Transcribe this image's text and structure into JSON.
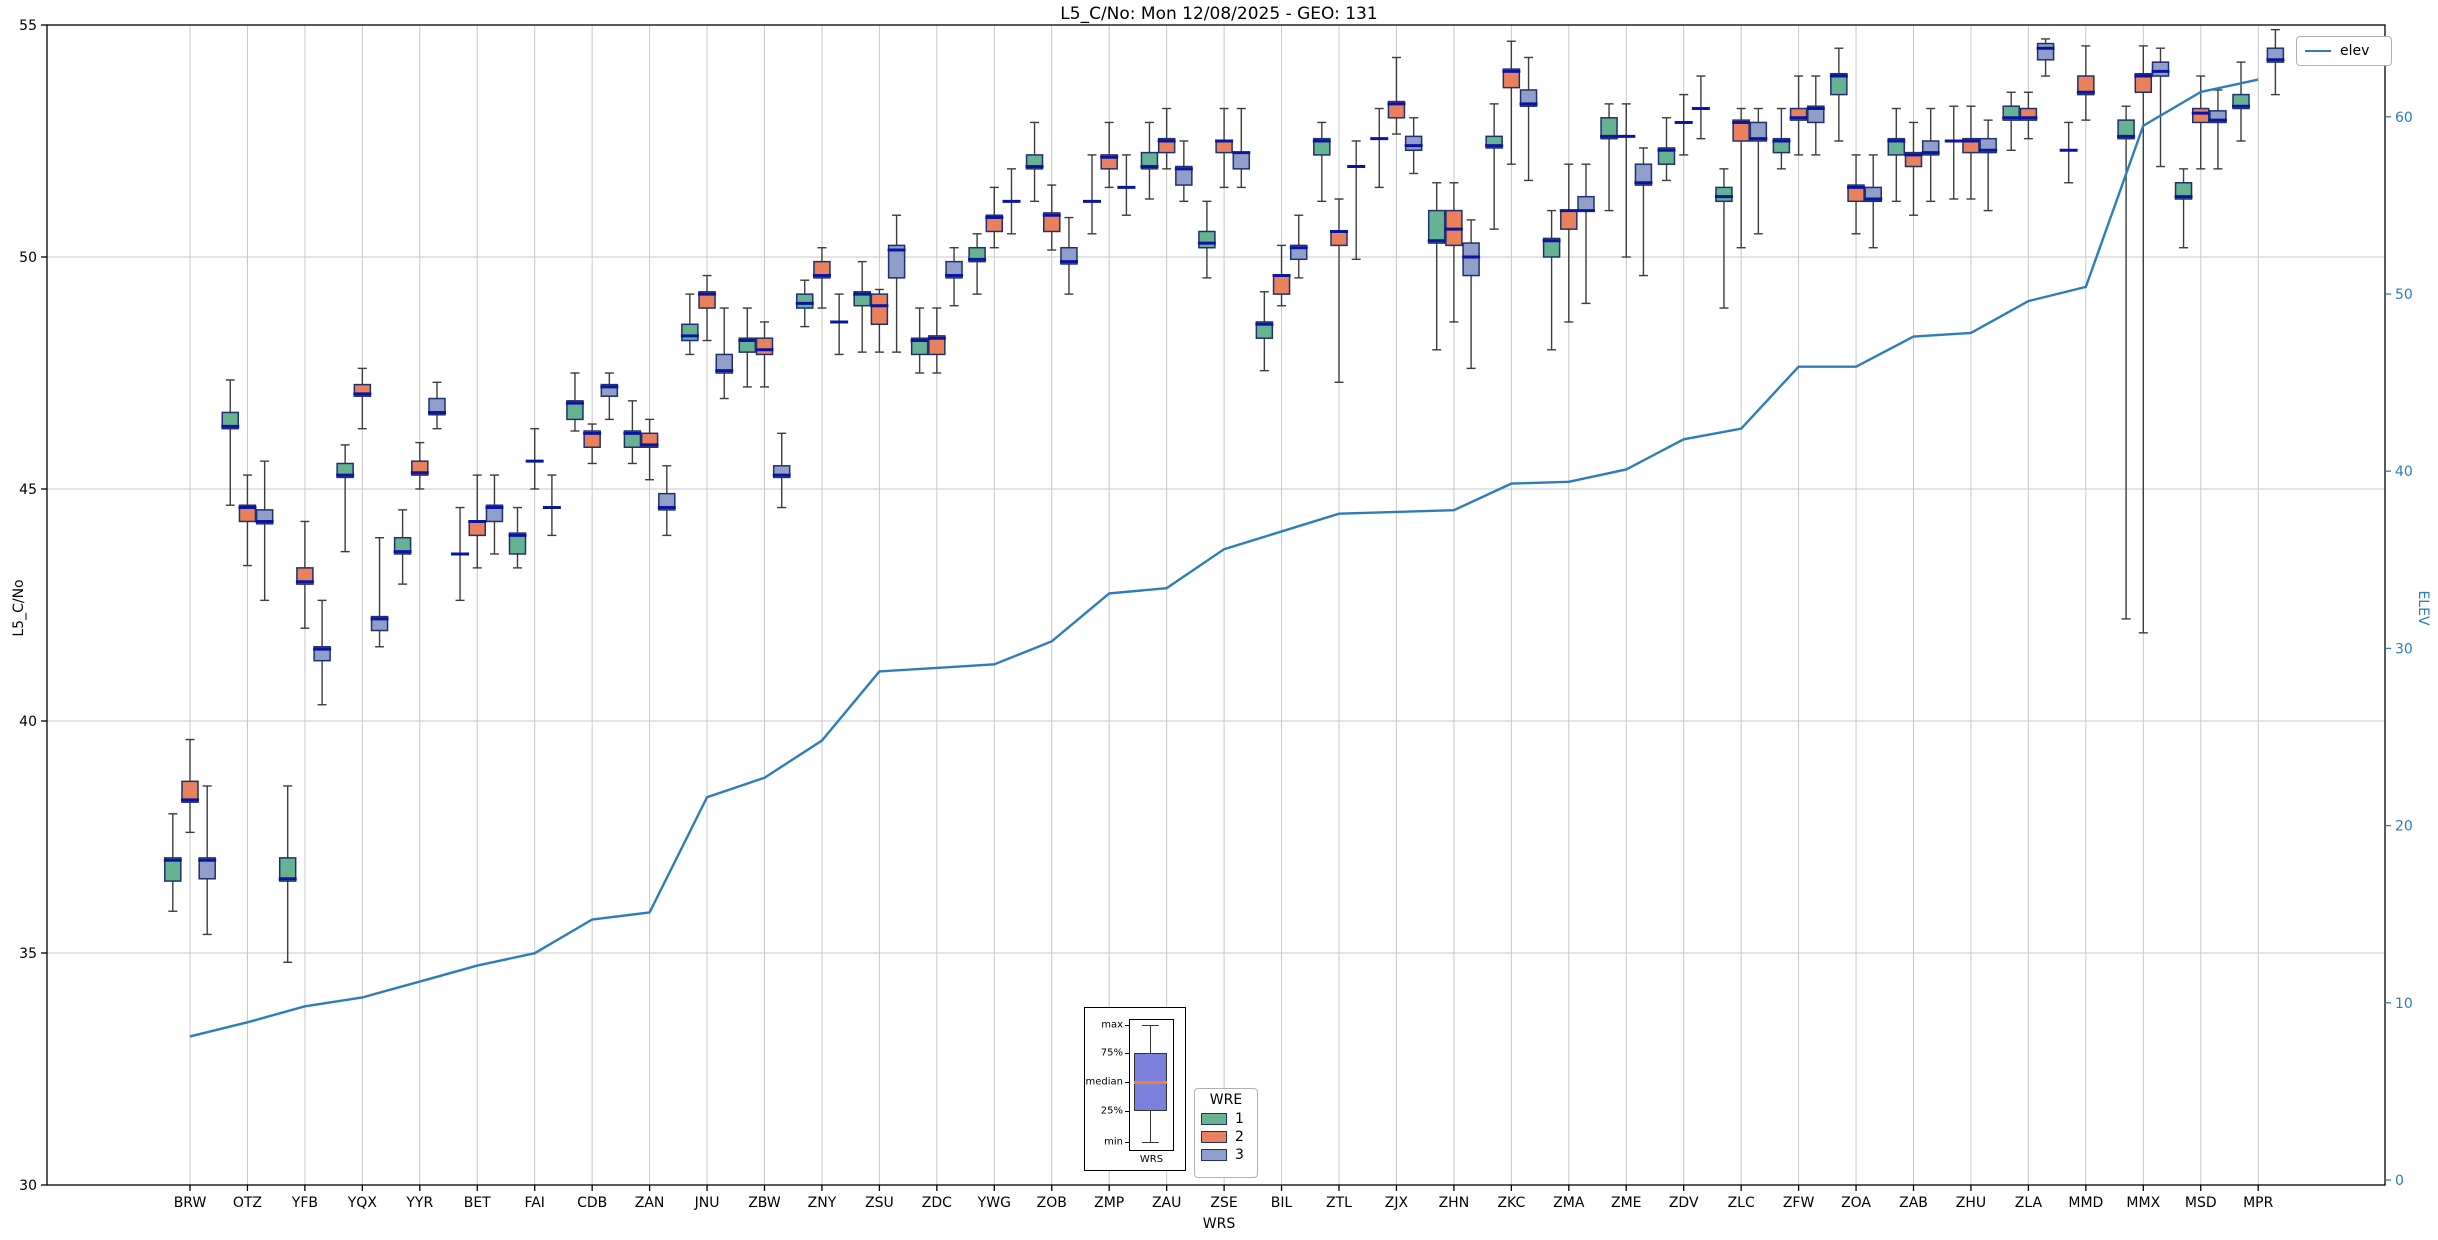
{
  "title": "L5_C/No: Mon 12/08/2025 - GEO: 131",
  "axes": {
    "ylabel_left": "L5_C/No",
    "ylabel_right": "ELEV",
    "xlabel": "WRS",
    "yticks_left": [
      30,
      35,
      40,
      45,
      50,
      55
    ],
    "yticks_right": [
      0,
      10,
      20,
      30,
      40,
      50,
      60
    ],
    "ylim_left": [
      30,
      55
    ],
    "right_axis_color": "#2d7dbb",
    "grid_color": "#c8c8c8"
  },
  "legend_elev": {
    "label": "elev"
  },
  "legend_wre": {
    "title": "WRE"
  },
  "inset": {
    "labels": [
      "max",
      "75%",
      "median",
      "25%",
      "min"
    ],
    "xlabel": "WRS",
    "box_color": "#7c80dd",
    "median_color": "#e8823c"
  },
  "chart_data": {
    "type": "boxplot+line",
    "title": "L5_C/No: Mon 12/08/2025 - GEO: 131",
    "xlabel": "WRS",
    "ylabel": "L5_C/No",
    "ylabel2": "ELEV",
    "ylim": [
      30,
      55
    ],
    "ylim2_ticks": [
      0,
      10,
      20,
      30,
      40,
      50,
      60
    ],
    "grid": true,
    "legend_position": "upper right",
    "categories": [
      "BRW",
      "OTZ",
      "YFB",
      "YQX",
      "YYR",
      "BET",
      "FAI",
      "CDB",
      "ZAN",
      "JNU",
      "ZBW",
      "ZNY",
      "ZSU",
      "ZDC",
      "YWG",
      "ZOB",
      "ZMP",
      "ZAU",
      "ZSE",
      "BIL",
      "ZTL",
      "ZJX",
      "ZHN",
      "ZKC",
      "ZMA",
      "ZME",
      "ZDV",
      "ZLC",
      "ZFW",
      "ZOA",
      "ZAB",
      "ZHU",
      "ZLA",
      "MMD",
      "MMX",
      "MSD",
      "MPR"
    ],
    "box_stats_order": [
      "median",
      "q1",
      "q3",
      "whisker_low",
      "whisker_high"
    ],
    "series": [
      {
        "name": "1",
        "color": "#66b394",
        "boxes": [
          [
            37.0,
            36.55,
            37.05,
            35.9,
            38.0
          ],
          [
            46.35,
            46.3,
            46.65,
            44.65,
            47.35
          ],
          [
            36.6,
            36.55,
            37.05,
            34.8,
            38.6
          ],
          [
            45.3,
            45.25,
            45.55,
            43.65,
            45.95
          ],
          [
            43.65,
            43.6,
            43.95,
            42.95,
            44.55
          ],
          [
            43.6,
            43.6,
            43.6,
            42.6,
            44.6
          ],
          [
            44.0,
            43.6,
            44.05,
            43.3,
            44.6
          ],
          [
            46.85,
            46.5,
            46.9,
            46.25,
            47.5
          ],
          [
            46.2,
            45.9,
            46.25,
            45.55,
            46.9
          ],
          [
            48.3,
            48.2,
            48.55,
            47.9,
            49.2
          ],
          [
            48.2,
            47.95,
            48.25,
            47.2,
            48.9
          ],
          [
            49.0,
            48.9,
            49.2,
            48.5,
            49.5
          ],
          [
            49.2,
            48.95,
            49.25,
            47.95,
            49.9
          ],
          [
            48.2,
            47.9,
            48.25,
            47.5,
            48.9
          ],
          [
            49.95,
            49.9,
            50.2,
            49.2,
            50.5
          ],
          [
            51.95,
            51.9,
            52.2,
            51.2,
            52.9
          ],
          [
            51.2,
            51.2,
            51.2,
            50.5,
            52.2
          ],
          [
            51.95,
            51.9,
            52.25,
            51.25,
            52.9
          ],
          [
            50.3,
            50.2,
            50.55,
            49.55,
            51.2
          ],
          [
            48.55,
            48.25,
            48.6,
            47.55,
            49.25
          ],
          [
            52.5,
            52.2,
            52.55,
            51.2,
            52.9
          ],
          [
            52.55,
            52.55,
            52.55,
            51.5,
            53.2
          ],
          [
            50.35,
            50.3,
            51.0,
            48.0,
            51.6
          ],
          [
            52.4,
            52.35,
            52.6,
            50.6,
            53.3
          ],
          [
            50.35,
            50.0,
            50.4,
            48.0,
            51.0
          ],
          [
            52.6,
            52.55,
            53.0,
            51.0,
            53.3
          ],
          [
            52.3,
            52.0,
            52.35,
            51.65,
            53.0
          ],
          [
            51.3,
            51.2,
            51.5,
            48.9,
            51.9
          ],
          [
            52.5,
            52.25,
            52.55,
            51.9,
            53.2
          ],
          [
            53.9,
            53.5,
            53.95,
            52.5,
            54.5
          ],
          [
            52.5,
            52.2,
            52.55,
            51.2,
            53.2
          ],
          [
            52.5,
            52.5,
            52.5,
            51.25,
            53.25
          ],
          [
            53.0,
            52.95,
            53.25,
            52.3,
            53.55
          ],
          [
            52.3,
            52.3,
            52.3,
            51.6,
            52.9
          ],
          [
            52.6,
            52.55,
            52.95,
            42.2,
            53.25
          ],
          [
            51.3,
            51.25,
            51.6,
            50.2,
            51.9
          ],
          [
            53.25,
            53.2,
            53.5,
            52.5,
            54.2
          ]
        ]
      },
      {
        "name": "2",
        "color": "#e8815c",
        "boxes": [
          [
            38.3,
            38.25,
            38.7,
            37.6,
            39.6
          ],
          [
            44.6,
            44.3,
            44.65,
            43.35,
            45.3
          ],
          [
            43.0,
            42.95,
            43.3,
            42.0,
            44.3
          ],
          [
            47.05,
            47.0,
            47.25,
            46.3,
            47.6
          ],
          [
            45.35,
            45.3,
            45.6,
            45.0,
            46.0
          ],
          [
            44.3,
            44.0,
            44.3,
            43.3,
            45.3
          ],
          [
            45.6,
            45.6,
            45.6,
            45.0,
            46.3
          ],
          [
            46.2,
            45.9,
            46.25,
            45.55,
            46.4
          ],
          [
            45.95,
            45.9,
            46.2,
            45.2,
            46.5
          ],
          [
            49.2,
            48.9,
            49.25,
            48.2,
            49.6
          ],
          [
            48.0,
            47.9,
            48.25,
            47.2,
            48.6
          ],
          [
            49.6,
            49.55,
            49.9,
            48.9,
            50.2
          ],
          [
            48.95,
            48.55,
            49.2,
            47.95,
            49.3
          ],
          [
            48.25,
            47.9,
            48.3,
            47.5,
            48.9
          ],
          [
            50.85,
            50.55,
            50.9,
            50.2,
            51.5
          ],
          [
            50.9,
            50.55,
            50.95,
            50.15,
            51.55
          ],
          [
            52.15,
            51.9,
            52.2,
            51.5,
            52.9
          ],
          [
            52.5,
            52.25,
            52.55,
            51.9,
            53.2
          ],
          [
            52.5,
            52.25,
            52.5,
            51.5,
            53.2
          ],
          [
            49.6,
            49.2,
            49.6,
            48.95,
            50.25
          ],
          [
            50.55,
            50.25,
            50.55,
            47.3,
            51.25
          ],
          [
            53.3,
            53.0,
            53.35,
            52.65,
            54.3
          ],
          [
            50.6,
            50.25,
            51.0,
            48.6,
            51.6
          ],
          [
            54.0,
            53.65,
            54.05,
            52.0,
            54.65
          ],
          [
            51.0,
            50.6,
            51.0,
            48.6,
            52.0
          ],
          [
            52.6,
            52.6,
            52.6,
            50.0,
            53.3
          ],
          [
            52.9,
            52.9,
            52.9,
            52.2,
            53.5
          ],
          [
            52.9,
            52.5,
            52.95,
            50.2,
            53.2
          ],
          [
            53.0,
            52.95,
            53.2,
            52.2,
            53.9
          ],
          [
            51.5,
            51.2,
            51.55,
            50.5,
            52.2
          ],
          [
            52.2,
            51.95,
            52.25,
            50.9,
            52.9
          ],
          [
            52.5,
            52.25,
            52.55,
            51.25,
            53.25
          ],
          [
            53.0,
            52.95,
            53.2,
            52.55,
            53.55
          ],
          [
            53.55,
            53.5,
            53.9,
            52.95,
            54.55
          ],
          [
            53.9,
            53.55,
            53.95,
            41.9,
            54.55
          ],
          [
            53.1,
            52.9,
            53.2,
            51.9,
            53.9
          ],
          null
        ]
      },
      {
        "name": "3",
        "color": "#8f9fca",
        "boxes": [
          [
            37.0,
            36.6,
            37.05,
            35.4,
            38.6
          ],
          [
            44.3,
            44.25,
            44.55,
            42.6,
            45.6
          ],
          [
            41.55,
            41.3,
            41.6,
            40.35,
            42.6
          ],
          [
            42.2,
            41.95,
            42.25,
            41.6,
            43.95
          ],
          [
            46.65,
            46.6,
            46.95,
            46.3,
            47.3
          ],
          [
            44.6,
            44.3,
            44.65,
            43.6,
            45.3
          ],
          [
            44.6,
            44.6,
            44.6,
            44.0,
            45.3
          ],
          [
            47.2,
            47.0,
            47.25,
            46.5,
            47.5
          ],
          [
            44.6,
            44.55,
            44.9,
            44.0,
            45.5
          ],
          [
            47.55,
            47.5,
            47.9,
            46.95,
            48.9
          ],
          [
            45.3,
            45.25,
            45.5,
            44.6,
            46.2
          ],
          [
            48.6,
            48.6,
            48.6,
            47.9,
            49.2
          ],
          [
            50.15,
            49.55,
            50.25,
            47.95,
            50.9
          ],
          [
            49.6,
            49.55,
            49.9,
            48.95,
            50.2
          ],
          [
            51.2,
            51.2,
            51.2,
            50.5,
            51.9
          ],
          [
            49.9,
            49.85,
            50.2,
            49.2,
            50.85
          ],
          [
            51.5,
            51.5,
            51.5,
            50.9,
            52.2
          ],
          [
            51.9,
            51.55,
            51.95,
            51.2,
            52.5
          ],
          [
            52.25,
            51.9,
            52.25,
            51.5,
            53.2
          ],
          [
            50.2,
            49.95,
            50.25,
            49.55,
            50.9
          ],
          [
            51.95,
            51.95,
            51.95,
            49.95,
            52.5
          ],
          [
            52.4,
            52.3,
            52.6,
            51.8,
            53.0
          ],
          [
            50.0,
            49.6,
            50.3,
            47.6,
            50.8
          ],
          [
            53.3,
            53.25,
            53.6,
            51.65,
            54.3
          ],
          [
            51.0,
            51.0,
            51.3,
            49.0,
            52.0
          ],
          [
            51.6,
            51.55,
            52.0,
            49.6,
            52.35
          ],
          [
            53.2,
            53.2,
            53.2,
            52.55,
            53.9
          ],
          [
            52.55,
            52.5,
            52.9,
            50.5,
            53.2
          ],
          [
            53.2,
            52.9,
            53.25,
            52.2,
            53.9
          ],
          [
            51.25,
            51.2,
            51.5,
            50.2,
            52.2
          ],
          [
            52.25,
            52.2,
            52.5,
            51.2,
            53.2
          ],
          [
            52.3,
            52.25,
            52.55,
            51.0,
            52.95
          ],
          [
            54.5,
            54.25,
            54.6,
            53.9,
            54.7
          ],
          null,
          [
            54.0,
            53.9,
            54.2,
            51.95,
            54.5
          ],
          [
            52.95,
            52.9,
            53.15,
            51.9,
            53.6
          ],
          [
            54.25,
            54.2,
            54.5,
            53.5,
            54.9
          ]
        ]
      }
    ],
    "line": {
      "name": "elev",
      "color": "#2d7dbb",
      "values": [
        8.1,
        8.9,
        9.8,
        10.3,
        11.2,
        12.1,
        12.8,
        14.7,
        15.1,
        21.6,
        22.7,
        24.8,
        28.7,
        28.9,
        29.1,
        30.4,
        33.1,
        33.4,
        35.6,
        36.6,
        37.6,
        37.7,
        37.8,
        39.3,
        39.4,
        40.1,
        41.8,
        42.4,
        45.9,
        45.9,
        47.6,
        47.8,
        49.6,
        50.4,
        59.5,
        61.4,
        62.1
      ]
    },
    "style": {
      "box_edge_color": "#20306e",
      "median_color": "#0a16a0",
      "whisker_color": "#3c3c3c"
    }
  }
}
